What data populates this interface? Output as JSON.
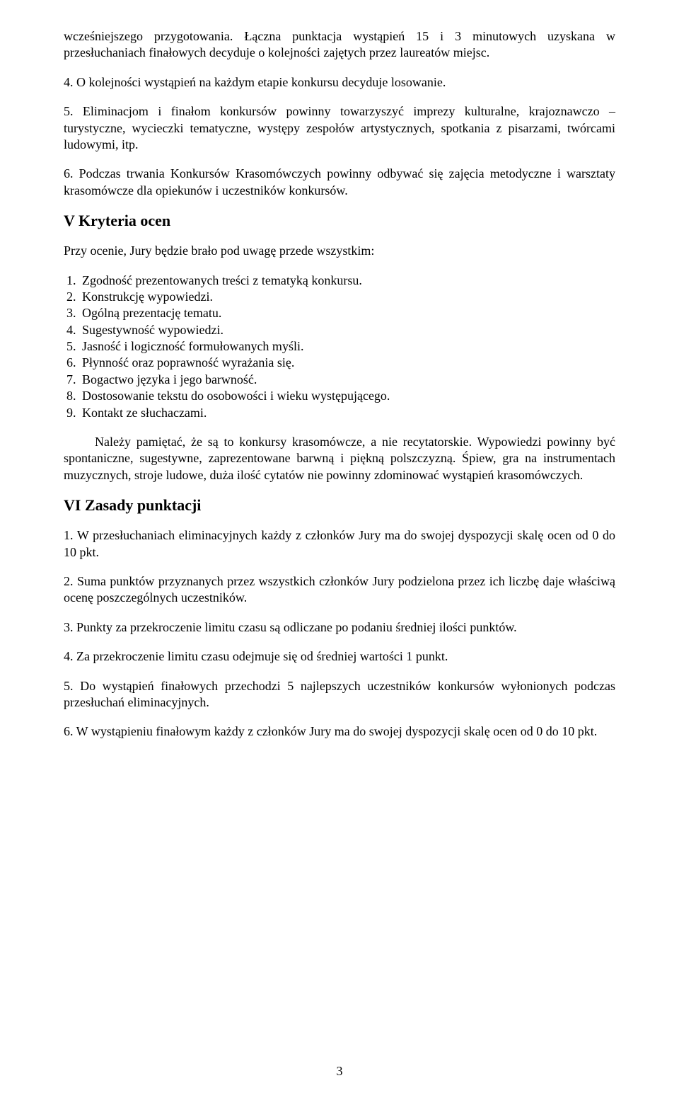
{
  "para1": "wcześniejszego przygotowania. Łączna punktacja wystąpień 15 i 3 minutowych uzyskana w przesłuchaniach finałowych decyduje o kolejności zajętych przez laureatów miejsc.",
  "para2": "4. O kolejności wystąpień na każdym etapie konkursu decyduje losowanie.",
  "para3": "5. Eliminacjom i finałom konkursów powinny towarzyszyć imprezy kulturalne, krajoznawczo – turystyczne, wycieczki tematyczne, występy zespołów artystycznych, spotkania z pisarzami, twórcami ludowymi, itp.",
  "para4": "6. Podczas trwania Konkursów Krasomówczych powinny odbywać się zajęcia metodyczne i warsztaty krasomówcze dla opiekunów i uczestników konkursów.",
  "heading1": "V Kryteria ocen",
  "para5": "Przy ocenie, Jury będzie brało pod uwagę przede wszystkim:",
  "criteria": [
    "Zgodność prezentowanych treści z tematyką konkursu.",
    "Konstrukcję wypowiedzi.",
    "Ogólną prezentację tematu.",
    "Sugestywność wypowiedzi.",
    "Jasność i logiczność formułowanych myśli.",
    "Płynność oraz poprawność wyrażania się.",
    "Bogactwo języka i jego barwność.",
    "Dostosowanie tekstu do osobowości i wieku występującego.",
    "Kontakt ze słuchaczami."
  ],
  "para6": "Należy pamiętać, że są to konkursy krasomówcze, a nie recytatorskie. Wypowiedzi powinny być spontaniczne, sugestywne, zaprezentowane barwną i piękną polszczyzną. Śpiew, gra na instrumentach muzycznych, stroje ludowe, duża ilość cytatów nie powinny zdominować wystąpień krasomówczych.",
  "heading2": "VI Zasady punktacji",
  "rules": {
    "r1": "1. W przesłuchaniach eliminacyjnych każdy z członków Jury ma do swojej dyspozycji skalę ocen od 0 do 10 pkt.",
    "r2": "2. Suma punktów przyznanych przez wszystkich członków Jury podzielona przez ich liczbę daje właściwą ocenę poszczególnych uczestników.",
    "r3": "3. Punkty za przekroczenie limitu czasu są odliczane po podaniu średniej ilości punktów.",
    "r4": "4. Za przekroczenie limitu czasu odejmuje się od średniej wartości 1 punkt.",
    "r5": "5. Do wystąpień finałowych przechodzi 5 najlepszych uczestników konkursów wyłonionych podczas przesłuchań eliminacyjnych.",
    "r6": "6. W wystąpieniu finałowym każdy z członków Jury ma do swojej dyspozycji skalę ocen od 0 do 10 pkt."
  },
  "pageNumber": "3"
}
